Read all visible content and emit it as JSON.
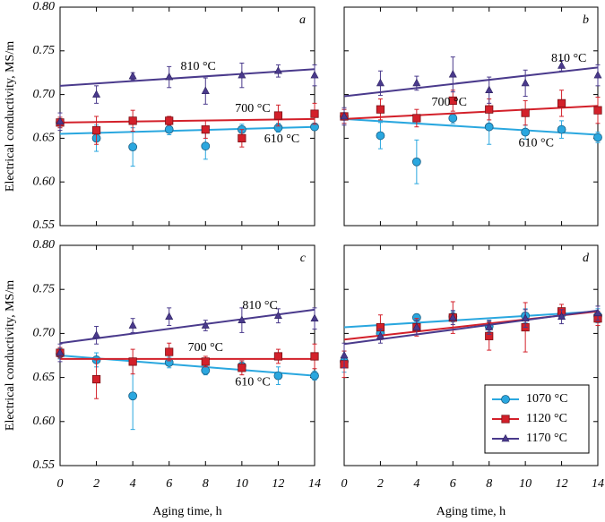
{
  "chart_data": [
    {
      "type": "scatter",
      "title": "a",
      "ylabel": "Electrical conductivity, MS/m",
      "xlim": [
        0,
        14
      ],
      "ylim": [
        0.55,
        0.8
      ],
      "xticks": [
        0,
        2,
        4,
        6,
        8,
        10,
        12,
        14
      ],
      "yticks": [
        {
          "value": 0.55,
          "label": "0.55"
        },
        {
          "value": 0.6,
          "label": "0.60"
        },
        {
          "value": 0.65,
          "label": "0.65"
        },
        {
          "value": 0.7,
          "label": "0.70"
        },
        {
          "value": 0.75,
          "label": "0.75"
        },
        {
          "value": 0.8,
          "label": "0.80"
        }
      ],
      "x": [
        0,
        2,
        4,
        6,
        8,
        10,
        12,
        14
      ],
      "series": [
        {
          "name": "610 °C",
          "color": "#2aa7df",
          "marker": "circle",
          "values": [
            0.668,
            0.65,
            0.64,
            0.66,
            0.641,
            0.66,
            0.662,
            0.663
          ],
          "errors": [
            0.006,
            0.015,
            0.022,
            0.006,
            0.015,
            0.006,
            0.005,
            0.004
          ],
          "fit": [
            0.655,
            0.663
          ]
        },
        {
          "name": "700 °C",
          "color": "#d3202a",
          "marker": "square",
          "values": [
            0.668,
            0.659,
            0.67,
            0.67,
            0.66,
            0.65,
            0.676,
            0.678
          ],
          "errors": [
            0.006,
            0.016,
            0.012,
            0.005,
            0.01,
            0.01,
            0.012,
            0.012
          ],
          "fit": [
            0.668,
            0.672
          ]
        },
        {
          "name": "810 °C",
          "color": "#4a3a8c",
          "marker": "triangle",
          "values": [
            0.669,
            0.7,
            0.721,
            0.72,
            0.704,
            0.722,
            0.727,
            0.722
          ],
          "errors": [
            0.01,
            0.01,
            0.004,
            0.012,
            0.015,
            0.014,
            0.007,
            0.012
          ],
          "fit": [
            0.71,
            0.729
          ]
        }
      ]
    },
    {
      "type": "scatter",
      "title": "b",
      "xlim": [
        0,
        14
      ],
      "ylim": [
        0.55,
        0.8
      ],
      "xticks": [
        0,
        2,
        4,
        6,
        8,
        10,
        12,
        14
      ],
      "yticks": [
        0.55,
        0.6,
        0.65,
        0.7,
        0.75,
        0.8
      ],
      "x": [
        0,
        2,
        4,
        6,
        8,
        10,
        12,
        14
      ],
      "series": [
        {
          "name": "610 °C",
          "color": "#2aa7df",
          "marker": "circle",
          "values": [
            0.675,
            0.653,
            0.623,
            0.673,
            0.663,
            0.657,
            0.66,
            0.651
          ],
          "errors": [
            0.008,
            0.015,
            0.025,
            0.006,
            0.02,
            0.008,
            0.01,
            0.006
          ],
          "fit": [
            0.672,
            0.654
          ]
        },
        {
          "name": "700 °C",
          "color": "#d3202a",
          "marker": "square",
          "values": [
            0.675,
            0.683,
            0.673,
            0.693,
            0.683,
            0.679,
            0.69,
            0.682
          ],
          "errors": [
            0.008,
            0.012,
            0.01,
            0.012,
            0.012,
            0.014,
            0.015,
            0.015
          ],
          "fit": [
            0.672,
            0.687
          ]
        },
        {
          "name": "810 °C",
          "color": "#4a3a8c",
          "marker": "triangle",
          "values": [
            0.675,
            0.713,
            0.713,
            0.723,
            0.705,
            0.713,
            0.733,
            0.722
          ],
          "errors": [
            0.01,
            0.014,
            0.008,
            0.02,
            0.015,
            0.015,
            0.006,
            0.012
          ],
          "fit": [
            0.698,
            0.731
          ]
        }
      ]
    },
    {
      "type": "scatter",
      "title": "c",
      "ylabel": "Electrical conductivity, MS/m",
      "xlabel": "Aging time, h",
      "xlim": [
        0,
        14
      ],
      "ylim": [
        0.55,
        0.8
      ],
      "xticks": [
        0,
        2,
        4,
        6,
        8,
        10,
        12,
        14
      ],
      "yticks": [
        {
          "value": 0.55,
          "label": "0.55"
        },
        {
          "value": 0.6,
          "label": "0.60"
        },
        {
          "value": 0.65,
          "label": "0.65"
        },
        {
          "value": 0.7,
          "label": "0.70"
        },
        {
          "value": 0.75,
          "label": "0.75"
        },
        {
          "value": 0.8,
          "label": "0.80"
        }
      ],
      "x": [
        0,
        2,
        4,
        6,
        8,
        10,
        12,
        14
      ],
      "series": [
        {
          "name": "610 °C",
          "color": "#2aa7df",
          "marker": "circle",
          "values": [
            0.677,
            0.67,
            0.629,
            0.667,
            0.658,
            0.663,
            0.652,
            0.652
          ],
          "errors": [
            0.006,
            0.008,
            0.038,
            0.006,
            0.005,
            0.006,
            0.01,
            0.005
          ],
          "fit": [
            0.675,
            0.652
          ]
        },
        {
          "name": "700 °C",
          "color": "#d3202a",
          "marker": "square",
          "values": [
            0.678,
            0.648,
            0.668,
            0.679,
            0.668,
            0.661,
            0.674,
            0.674
          ],
          "errors": [
            0.006,
            0.022,
            0.014,
            0.01,
            0.006,
            0.008,
            0.008,
            0.014
          ],
          "fit": [
            0.671,
            0.671
          ]
        },
        {
          "name": "810 °C",
          "color": "#4a3a8c",
          "marker": "triangle",
          "values": [
            0.678,
            0.698,
            0.709,
            0.719,
            0.709,
            0.715,
            0.72,
            0.717
          ],
          "errors": [
            0.01,
            0.01,
            0.008,
            0.01,
            0.006,
            0.014,
            0.008,
            0.012
          ],
          "fit": [
            0.689,
            0.727
          ]
        }
      ]
    },
    {
      "type": "scatter",
      "title": "d",
      "xlabel": "Aging time, h",
      "legend": "lower right",
      "xlim": [
        0,
        14
      ],
      "ylim": [
        0.55,
        0.8
      ],
      "xticks": [
        0,
        2,
        4,
        6,
        8,
        10,
        12,
        14
      ],
      "yticks": [
        0.55,
        0.6,
        0.65,
        0.7,
        0.75,
        0.8
      ],
      "x": [
        0,
        2,
        4,
        6,
        8,
        10,
        12,
        14
      ],
      "series": [
        {
          "name": "1070 °C",
          "color": "#2aa7df",
          "marker": "circle",
          "values": [
            0.668,
            0.7,
            0.718,
            0.719,
            0.708,
            0.72,
            0.722,
            0.72
          ],
          "errors": [
            0.012,
            0.006,
            0.004,
            0.006,
            0.006,
            0.008,
            0.005,
            0.008
          ],
          "fit": [
            0.707,
            0.725
          ]
        },
        {
          "name": "1120 °C",
          "color": "#d3202a",
          "marker": "square",
          "values": [
            0.665,
            0.707,
            0.707,
            0.718,
            0.697,
            0.707,
            0.725,
            0.717
          ],
          "errors": [
            0.015,
            0.014,
            0.01,
            0.018,
            0.016,
            0.028,
            0.008,
            0.008
          ],
          "fit": [
            0.693,
            0.725
          ]
        },
        {
          "name": "1170 °C",
          "color": "#4a3a8c",
          "marker": "triangle",
          "values": [
            0.675,
            0.697,
            0.707,
            0.718,
            0.707,
            0.717,
            0.719,
            0.723
          ],
          "errors": [
            0.014,
            0.008,
            0.008,
            0.008,
            0.008,
            0.01,
            0.008,
            0.008
          ],
          "fit": [
            0.688,
            0.726
          ]
        }
      ]
    }
  ]
}
